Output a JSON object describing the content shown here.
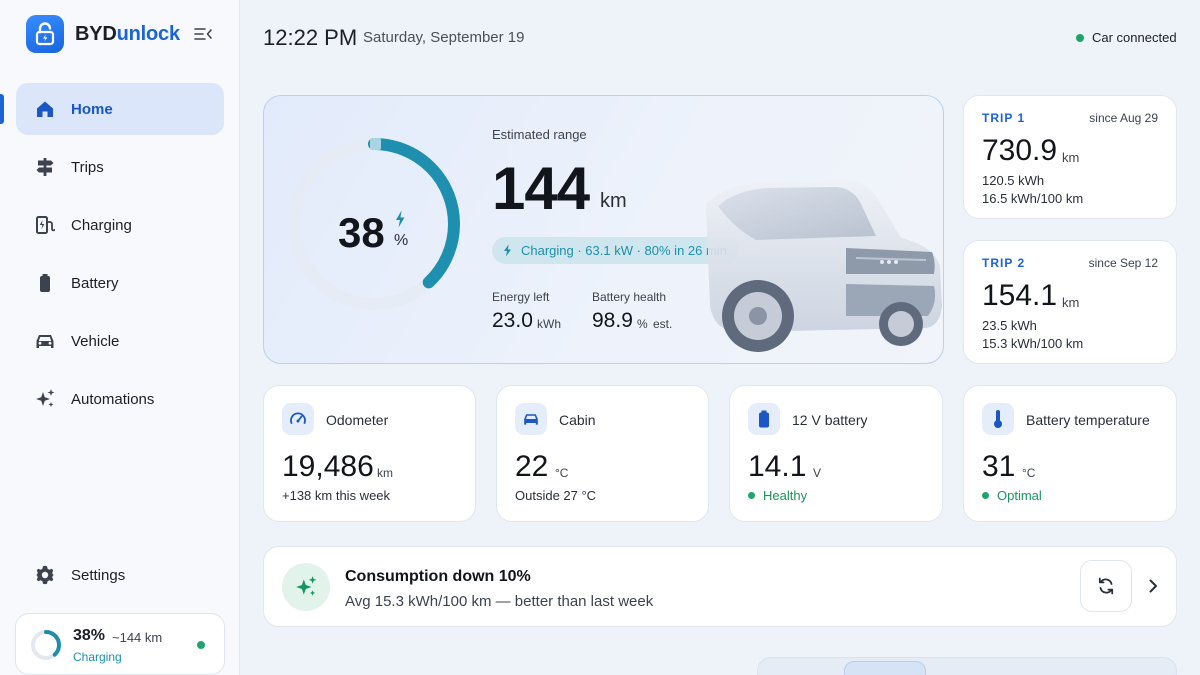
{
  "brand": {
    "name_part1": "BYD",
    "name_part2": "unlock"
  },
  "nav": [
    {
      "label": "Home",
      "icon": "home-icon"
    },
    {
      "label": "Trips",
      "icon": "signpost-icon"
    },
    {
      "label": "Charging",
      "icon": "charging-station-icon"
    },
    {
      "label": "Battery",
      "icon": "battery-icon"
    },
    {
      "label": "Vehicle",
      "icon": "car-icon"
    },
    {
      "label": "Automations",
      "icon": "sparkle-icon"
    }
  ],
  "settings": {
    "label": "Settings"
  },
  "mini_status": {
    "percent": "38%",
    "range": "~144 km",
    "status": "Charging",
    "level": 0.38
  },
  "header": {
    "time": "12:22 PM",
    "date": "Saturday, September 19",
    "connection": "Car connected"
  },
  "hero": {
    "charge_level": 38,
    "charge_percent": "38",
    "percent_unit": "%",
    "range_label": "Estimated range",
    "range_value": "144",
    "range_unit": "km",
    "charging_text": "Charging · 63.1 kW · 80% in 26 min",
    "energy_left_label": "Energy left",
    "energy_left_value": "23.0",
    "energy_left_unit": "kWh",
    "battery_health_label": "Battery health",
    "battery_health_value": "98.9",
    "battery_health_unit": "%",
    "battery_health_note": "est."
  },
  "trips": [
    {
      "label": "TRIP 1",
      "since": "since Aug 29",
      "distance": "730.9",
      "unit": "km",
      "energy": "120.5 kWh",
      "efficiency": "16.5 kWh/100 km"
    },
    {
      "label": "TRIP 2",
      "since": "since Sep 12",
      "distance": "154.1",
      "unit": "km",
      "energy": "23.5 kWh",
      "efficiency": "15.3 kWh/100 km"
    }
  ],
  "stats": [
    {
      "title": "Odometer",
      "value": "19,486",
      "unit": "km",
      "sub": "+138 km this week",
      "icon": "speedometer-icon"
    },
    {
      "title": "Cabin",
      "value": "22",
      "unit": "°C",
      "sub": "Outside 27 °C",
      "icon": "car-icon"
    },
    {
      "title": "12 V battery",
      "value": "14.1",
      "unit": "V",
      "sub": "Healthy",
      "icon": "battery-icon"
    },
    {
      "title": "Battery temperature",
      "value": "31",
      "unit": "°C",
      "sub": "Optimal",
      "icon": "thermometer-icon"
    }
  ],
  "insight": {
    "title": "Consumption down 10%",
    "subtitle": "Avg 15.3 kWh/100 km — better than last week"
  },
  "colors": {
    "accent": "#1a63d8",
    "teal": "#1e8fa8",
    "success": "#1fa56b"
  }
}
